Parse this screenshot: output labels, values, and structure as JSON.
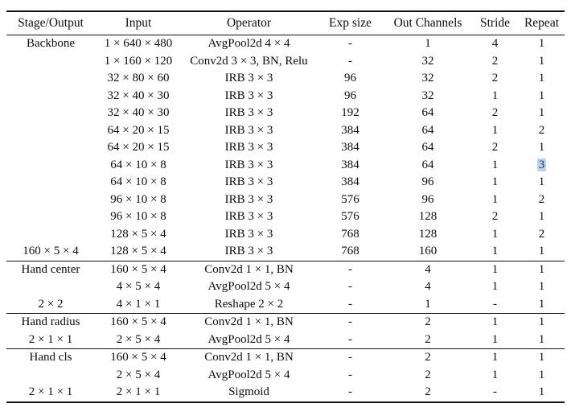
{
  "page": {
    "background": "#ffffff",
    "text_color": "#0d0d0d",
    "rule_color": "#111111"
  },
  "table": {
    "columns": [
      "Stage/Output",
      "Input",
      "Operator",
      "Exp size",
      "Out Channels",
      "Stride",
      "Repeat"
    ],
    "sections": [
      {
        "name": "backbone",
        "rows": [
          [
            "Backbone",
            "1 × 640 × 480",
            "AvgPool2d 4 × 4",
            "-",
            "1",
            "4",
            "1"
          ],
          [
            "",
            "1 × 160 × 120",
            "Conv2d 3 × 3, BN, Relu",
            "-",
            "32",
            "2",
            "1"
          ],
          [
            "",
            "32 × 80 × 60",
            "IRB 3 × 3",
            "96",
            "32",
            "2",
            "1"
          ],
          [
            "",
            "32 × 40 × 30",
            "IRB 3 × 3",
            "96",
            "32",
            "1",
            "1"
          ],
          [
            "",
            "32 × 40 × 30",
            "IRB 3 × 3",
            "192",
            "64",
            "2",
            "1"
          ],
          [
            "",
            "64 × 20 × 15",
            "IRB 3 × 3",
            "384",
            "64",
            "1",
            "2"
          ],
          [
            "",
            "64 × 20 × 15",
            "IRB 3 × 3",
            "384",
            "64",
            "2",
            "1"
          ],
          [
            "",
            "64 × 10 × 8",
            "IRB 3 × 3",
            "384",
            "64",
            "1",
            "3"
          ],
          [
            "",
            "64 × 10 × 8",
            "IRB 3 × 3",
            "384",
            "96",
            "1",
            "1"
          ],
          [
            "",
            "96 × 10 × 8",
            "IRB 3 × 3",
            "576",
            "96",
            "1",
            "2"
          ],
          [
            "",
            "96 × 10 × 8",
            "IRB 3 × 3",
            "576",
            "128",
            "2",
            "1"
          ],
          [
            "",
            "128 × 5 × 4",
            "IRB 3 × 3",
            "768",
            "128",
            "1",
            "2"
          ],
          [
            "160 × 5 × 4",
            "128 × 5 × 4",
            "IRB 3 × 3",
            "768",
            "160",
            "1",
            "1"
          ]
        ]
      },
      {
        "name": "hand-center",
        "rows": [
          [
            "Hand center",
            "160 × 5 × 4",
            "Conv2d 1 × 1, BN",
            "-",
            "4",
            "1",
            "1"
          ],
          [
            "",
            "4 × 5 × 4",
            "AvgPool2d 5 × 4",
            "-",
            "4",
            "1",
            "1"
          ],
          [
            "2 × 2",
            "4 × 1 × 1",
            "Reshape 2 × 2",
            "-",
            "1",
            "-",
            "1"
          ]
        ]
      },
      {
        "name": "hand-radius",
        "rows": [
          [
            "Hand radius",
            "160 × 5 × 4",
            "Conv2d 1 × 1, BN",
            "-",
            "2",
            "1",
            "1"
          ],
          [
            "2 × 1 × 1",
            "2 × 5 × 4",
            "AvgPool2d 5 × 4",
            "-",
            "2",
            "1",
            "1"
          ]
        ]
      },
      {
        "name": "hand-cls",
        "rows": [
          [
            "Hand cls",
            "160 × 5 × 4",
            "Conv2d 1 × 1, BN",
            "-",
            "2",
            "1",
            "1"
          ],
          [
            "",
            "2 × 5 × 4",
            "AvgPool2d 5 × 4",
            "-",
            "2",
            "1",
            "1"
          ],
          [
            "2 × 1 × 1",
            "2 × 1 × 1",
            "Sigmoid",
            "-",
            "2",
            "-",
            "1"
          ]
        ]
      }
    ],
    "selection": {
      "section": 0,
      "row": 7,
      "col": 6,
      "value": "3",
      "background": "#b9d2ee",
      "text_color": "#1c2e6b"
    }
  }
}
